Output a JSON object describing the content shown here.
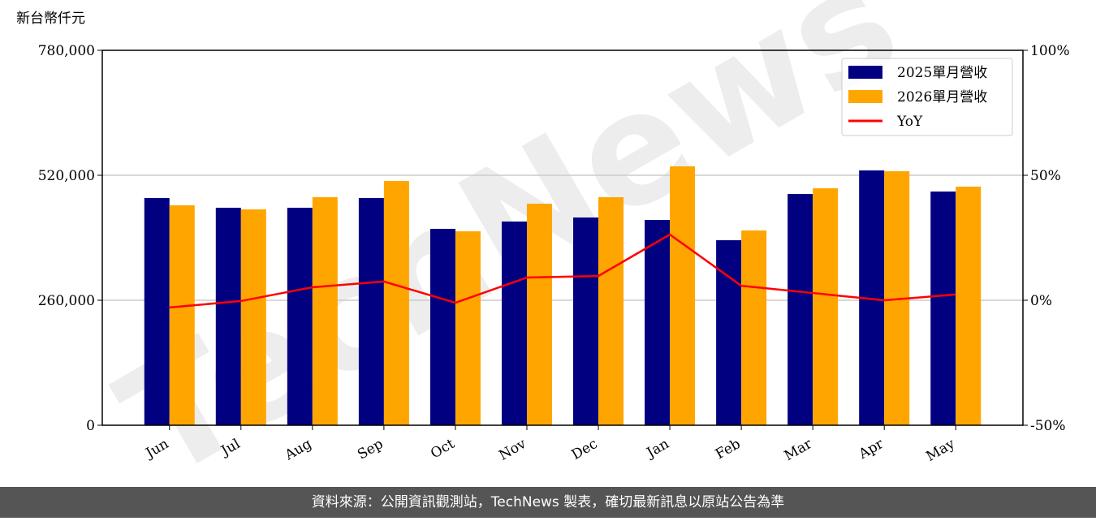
{
  "chart_data": {
    "type": "bar-line",
    "y_label": "新台幣仟元",
    "watermark": "TechNews",
    "categories": [
      "Jun",
      "Jul",
      "Aug",
      "Sep",
      "Oct",
      "Nov",
      "Dec",
      "Jan",
      "Feb",
      "Mar",
      "Apr",
      "May"
    ],
    "series": [
      {
        "name": "2025單月營收",
        "color": "#000080",
        "type": "bar",
        "values": [
          472700,
          452500,
          452500,
          472700,
          408600,
          423800,
          432200,
          427100,
          384900,
          481200,
          530100,
          486200
        ]
      },
      {
        "name": "2026單月營收",
        "color": "#ffa500",
        "type": "bar",
        "values": [
          457500,
          449100,
          474400,
          508200,
          403500,
          460900,
          474400,
          538600,
          405200,
          493000,
          528400,
          496400
        ]
      },
      {
        "name": "YoY",
        "color": "#ff0000",
        "type": "line",
        "axis": "y2",
        "values": [
          -2.9,
          -0.3,
          5.2,
          7.5,
          -1.0,
          9.1,
          9.7,
          26.3,
          5.8,
          2.9,
          0,
          2.3
        ]
      }
    ],
    "ylim": [
      0,
      780000
    ],
    "yticks": [
      0,
      {
        "value": 260000,
        "label": "260,000"
      },
      {
        "value": 520000,
        "label": "520,000"
      },
      {
        "value": 780000,
        "label": "780,000"
      }
    ],
    "y2lim": [
      -50,
      100
    ],
    "y2ticks": [
      {
        "value": -50,
        "label": "-50%"
      },
      {
        "value": 0,
        "label": "0%"
      },
      {
        "value": 50,
        "label": "50%"
      },
      {
        "value": 100,
        "label": "100%"
      }
    ],
    "grid": true,
    "legend": "upper right",
    "footer": "資料來源：公開資訊觀測站，TechNews 製表，確切最新訊息以原站公告為準"
  }
}
